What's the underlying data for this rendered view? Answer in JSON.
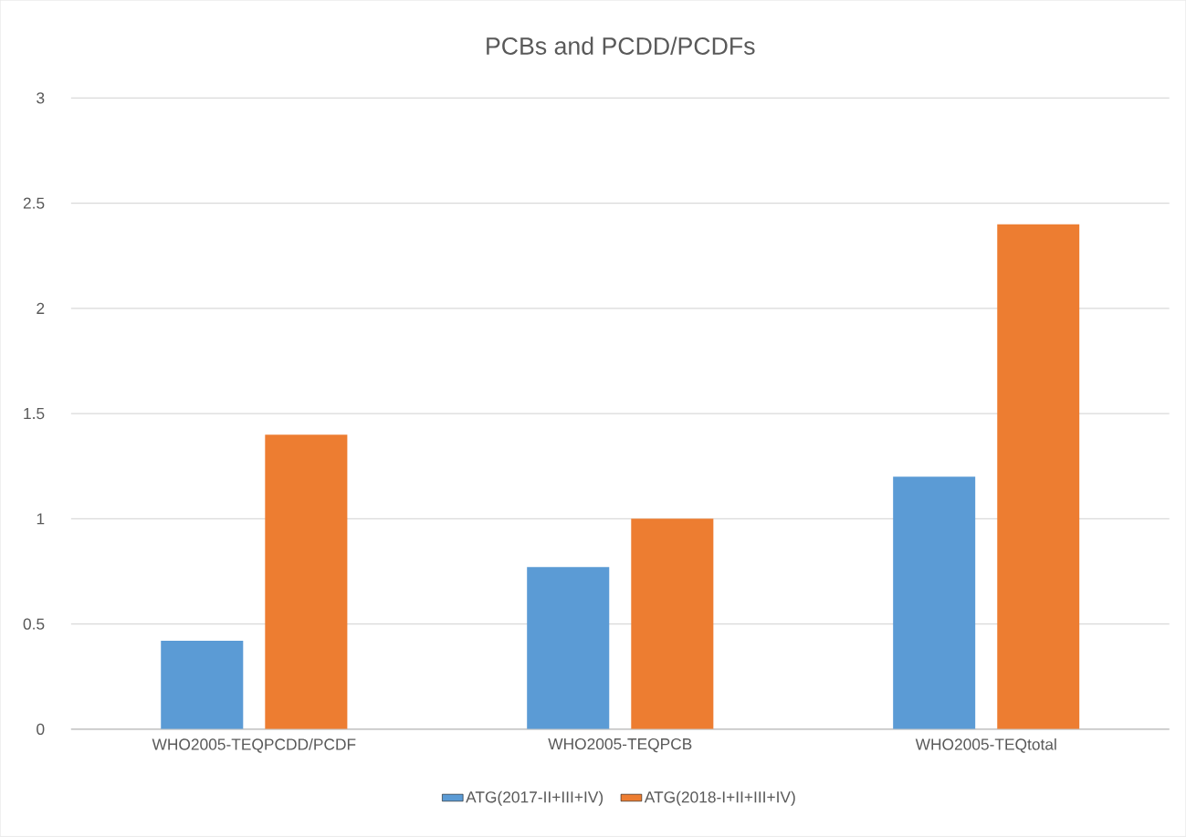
{
  "chart_data": {
    "type": "bar",
    "title": "PCBs and PCDD/PCDFs",
    "categories": [
      "WHO2005-TEQPCDD/PCDF",
      "WHO2005-TEQPCB",
      "WHO2005-TEQtotal"
    ],
    "series": [
      {
        "name": "ATG(2017-II+III+IV)",
        "color": "#5b9bd5",
        "values": [
          0.42,
          0.77,
          1.2
        ]
      },
      {
        "name": "ATG(2018-I+II+III+IV)",
        "color": "#ed7d31",
        "values": [
          1.4,
          1.0,
          2.4
        ]
      }
    ],
    "ylim": [
      0,
      3
    ],
    "yticks": [
      0,
      0.5,
      1,
      1.5,
      2,
      2.5,
      3
    ],
    "grid": "y",
    "legend": "bottom"
  }
}
